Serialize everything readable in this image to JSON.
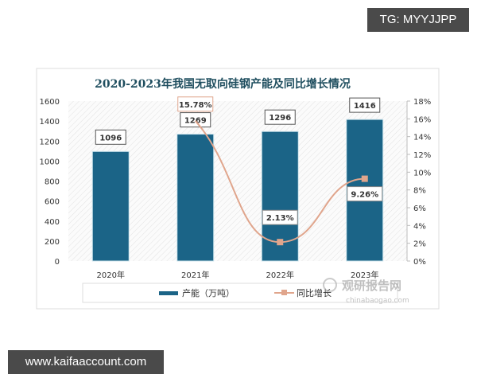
{
  "watermark_top": "TG: MYYJJPP",
  "watermark_bottom": "www.kaifaaccount.com",
  "logo": {
    "name": "观研报告网",
    "url_text": "chinabaogao.com"
  },
  "chart_data": {
    "type": "bar+line",
    "title": "2020-2023年我国无取向硅钢产能及同比增长情况",
    "categories": [
      "2020年",
      "2021年",
      "2022年",
      "2023年"
    ],
    "series": [
      {
        "name": "产能（万吨）",
        "type": "bar",
        "axis": "left",
        "values": [
          1096,
          1269,
          1296,
          1416
        ],
        "labels": [
          "1096",
          "1269",
          "1296",
          "1416"
        ],
        "color": "#1b6487"
      },
      {
        "name": "同比增长",
        "type": "line",
        "axis": "right",
        "values": [
          null,
          15.78,
          2.13,
          9.26
        ],
        "labels": [
          "",
          "15.78%",
          "2.13%",
          "9.26%"
        ],
        "color": "#e0a58c"
      }
    ],
    "left_axis": {
      "range": [
        0,
        1600
      ],
      "ticks": [
        "0",
        "200",
        "400",
        "600",
        "800",
        "1000",
        "1200",
        "1400",
        "1600"
      ]
    },
    "right_axis": {
      "range": [
        0,
        18
      ],
      "ticks": [
        "0%",
        "2%",
        "4%",
        "6%",
        "8%",
        "10%",
        "12%",
        "14%",
        "16%",
        "18%"
      ]
    },
    "legend_placement": "bottom",
    "grid": false
  }
}
